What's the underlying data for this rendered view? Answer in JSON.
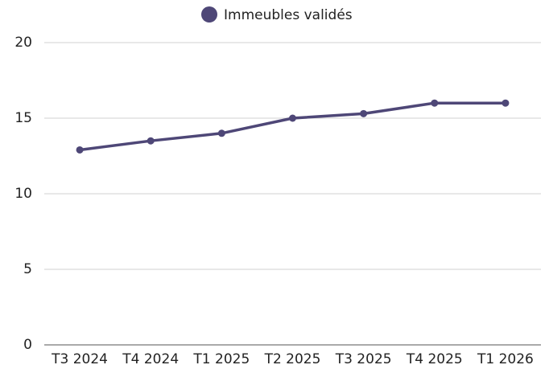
{
  "chart_data": {
    "type": "line",
    "categories": [
      "T3 2024",
      "T4 2024",
      "T1 2025",
      "T2 2025",
      "T3 2025",
      "T4 2025",
      "T1 2026"
    ],
    "series": [
      {
        "name": "Immeubles validés",
        "color": "#4e4777",
        "values": [
          12.9,
          13.5,
          14.0,
          15.0,
          15.3,
          16.0,
          16.0
        ]
      }
    ],
    "ylim": [
      0,
      20
    ],
    "yticks": [
      0,
      5,
      10,
      15,
      20
    ],
    "grid": true,
    "legend": "top"
  }
}
